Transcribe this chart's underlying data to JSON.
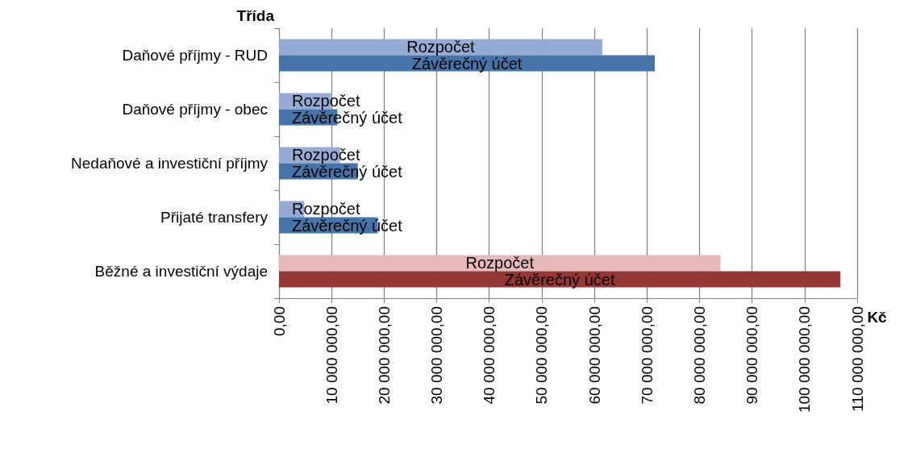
{
  "chart_data": {
    "type": "bar",
    "orientation": "horizontal",
    "xlabel": "Kč",
    "ylabel": "Třída",
    "categories": [
      "Daňové příjmy - RUD",
      "Daňové příjmy - obec",
      "Nedaňové a investiční příjmy",
      "Přijaté transfery",
      "Běžné a investiční výdaje"
    ],
    "series": [
      {
        "name": "Rozpočet",
        "colors": [
          "#95abd5",
          "#95abd5",
          "#95abd5",
          "#95abd5",
          "#e6b9b8"
        ],
        "values": [
          61500000,
          9900000,
          11600000,
          4800000,
          84000000
        ]
      },
      {
        "name": "Závěrečný účet",
        "colors": [
          "#4674a9",
          "#4674a9",
          "#4674a9",
          "#4674a9",
          "#953735"
        ],
        "values": [
          71500000,
          11100000,
          15000000,
          18800000,
          106800000
        ]
      }
    ],
    "xlim": [
      0,
      110000000
    ],
    "xticks": [
      {
        "value": 0,
        "label": "0,00"
      },
      {
        "value": 10000000,
        "label": "10 000 000,00"
      },
      {
        "value": 20000000,
        "label": "20 000 000,00"
      },
      {
        "value": 30000000,
        "label": "30 000 000,00"
      },
      {
        "value": 40000000,
        "label": "40 000 000,00"
      },
      {
        "value": 50000000,
        "label": "50 000 000,00"
      },
      {
        "value": 60000000,
        "label": "60 000 000,00"
      },
      {
        "value": 70000000,
        "label": "70 000 000,00"
      },
      {
        "value": 80000000,
        "label": "80 000 000,00"
      },
      {
        "value": 90000000,
        "label": "90 000 000,00"
      },
      {
        "value": 100000000,
        "label": "100 000 000,00"
      },
      {
        "value": 110000000,
        "label": "110 000 000,00"
      }
    ],
    "grid": "x",
    "legend": false
  }
}
